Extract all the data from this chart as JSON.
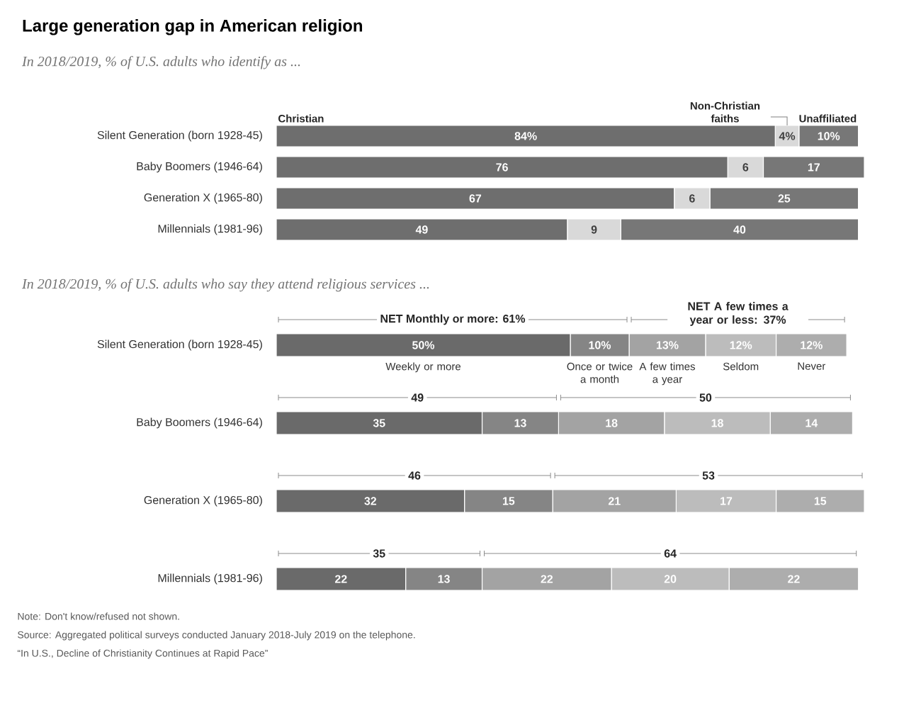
{
  "chart_data": [
    {
      "type": "bar",
      "orientation": "horizontal",
      "stacked": true,
      "tick_labels": "y",
      "title": "Large generation gap in American religion",
      "subtitle": "In 2018/2019, % of U.S. adults who identify as ...",
      "categories": [
        "Silent Generation (born 1928-45)",
        "Baby Boomers (1946-64)",
        "Generation X (1965-80)",
        "Millennials (1981-96)"
      ],
      "series": [
        {
          "name": "Christian",
          "color": "#6e6e6e",
          "values": [
            84,
            76,
            67,
            49
          ],
          "value_labels": [
            "84%",
            "76",
            "67",
            "49"
          ]
        },
        {
          "name": "Non-Christian faiths",
          "color": "#d9d9d9",
          "values": [
            4,
            6,
            6,
            9
          ],
          "value_labels": [
            "4%",
            "6",
            "6",
            "9"
          ]
        },
        {
          "name": "Unaffiliated",
          "color": "#777777",
          "values": [
            10,
            17,
            25,
            40
          ],
          "value_labels": [
            "10%",
            "17",
            "25",
            "40"
          ]
        }
      ]
    },
    {
      "type": "bar",
      "orientation": "horizontal",
      "stacked": true,
      "tick_labels": "y",
      "subtitle": "In 2018/2019, % of U.S. adults who say they attend religious services ...",
      "categories": [
        "Silent Generation (born 1928-45)",
        "Baby Boomers (1946-64)",
        "Generation X (1965-80)",
        "Millennials (1981-96)"
      ],
      "series": [
        {
          "name": "Weekly or more",
          "color": "#6a6a6a",
          "values": [
            50,
            35,
            32,
            22
          ],
          "value_labels": [
            "50%",
            "35",
            "32",
            "22"
          ]
        },
        {
          "name": "Once or twice a month",
          "color": "#858585",
          "values": [
            10,
            13,
            15,
            13
          ],
          "value_labels": [
            "10%",
            "13",
            "15",
            "13"
          ]
        },
        {
          "name": "A few times a year",
          "color": "#a3a3a3",
          "values": [
            13,
            18,
            21,
            22
          ],
          "value_labels": [
            "13%",
            "18",
            "21",
            "22"
          ]
        },
        {
          "name": "Seldom",
          "color": "#bcbcbc",
          "values": [
            12,
            18,
            17,
            20
          ],
          "value_labels": [
            "12%",
            "18",
            "17",
            "20"
          ]
        },
        {
          "name": "Never",
          "color": "#adadad",
          "values": [
            12,
            14,
            15,
            22
          ],
          "value_labels": [
            "12%",
            "14",
            "15",
            "22"
          ]
        }
      ],
      "annotations": [
        "NET Monthly or more: 61%",
        "NET A few times a year or less: 37%",
        "49",
        "50",
        "46",
        "53",
        "35",
        "64",
        "Note: Don't know/refused not shown.",
        "Source: Aggregated political surveys conducted January 2018-July 2019 on the telephone.",
        "“In U.S., Decline of Christianity Continues at Rapid Pace”"
      ]
    }
  ]
}
